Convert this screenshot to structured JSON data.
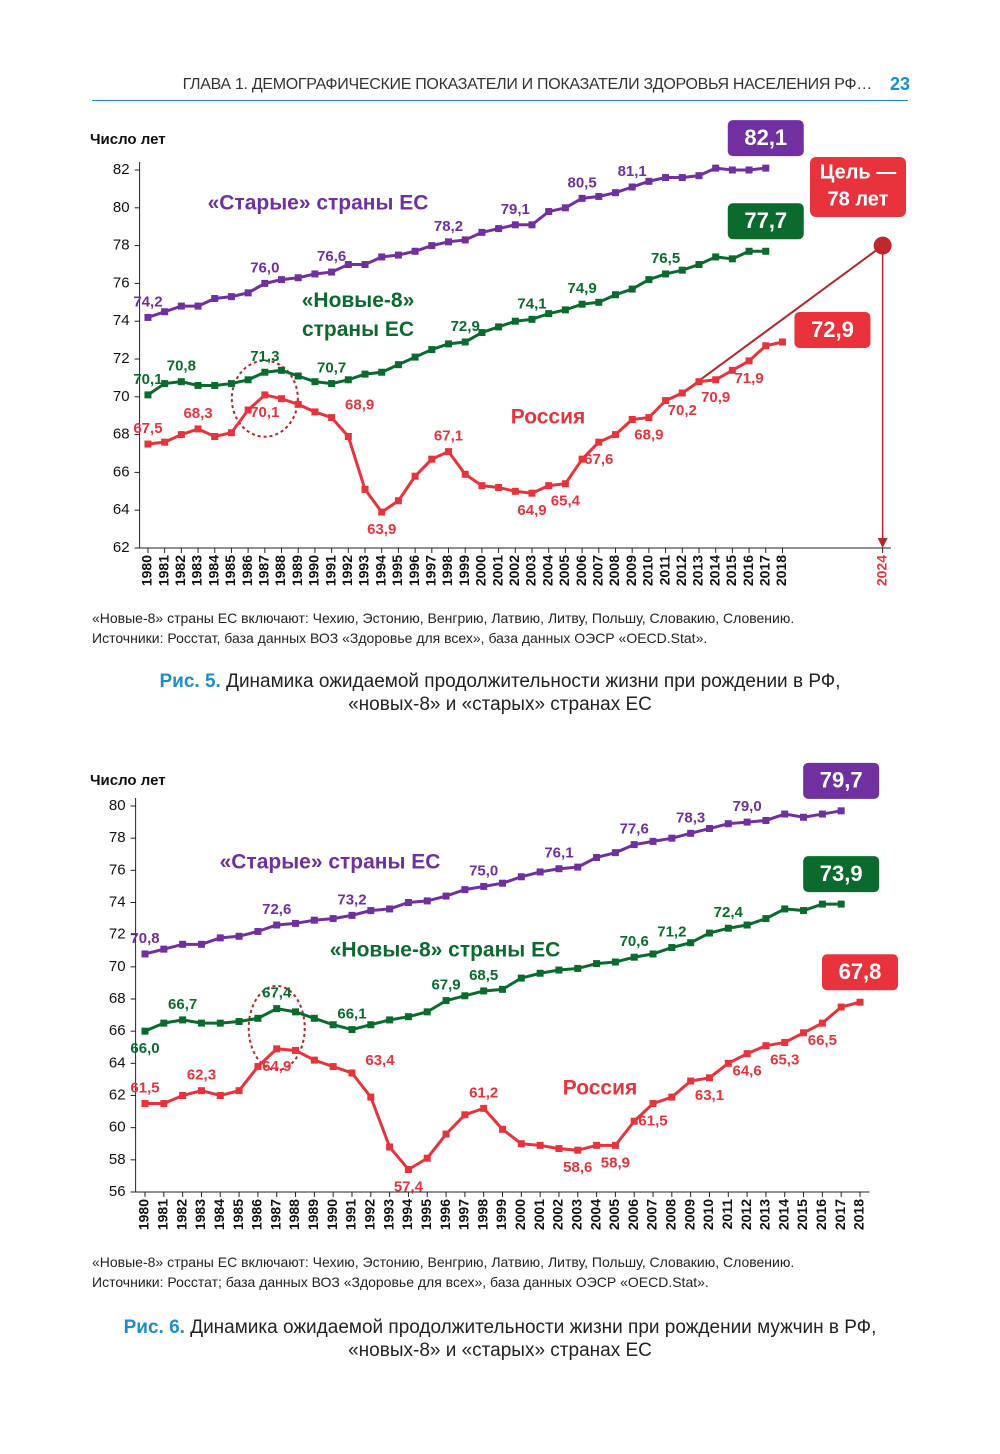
{
  "header": {
    "title": "ГЛАВА 1. ДЕМОГРАФИЧЕСКИЕ ПОКАЗАТЕЛИ И ПОКАЗАТЕЛИ ЗДОРОВЬЯ НАСЕЛЕНИЯ РФ…",
    "page": 23
  },
  "chart_data": [
    {
      "type": "line",
      "y_label": "Число лет",
      "x": [
        1980,
        1981,
        1982,
        1983,
        1984,
        1985,
        1986,
        1987,
        1988,
        1989,
        1990,
        1991,
        1992,
        1993,
        1994,
        1995,
        1996,
        1997,
        1998,
        1999,
        2000,
        2001,
        2002,
        2003,
        2004,
        2005,
        2006,
        2007,
        2008,
        2009,
        2010,
        2011,
        2012,
        2013,
        2014,
        2015,
        2016,
        2017,
        2018
      ],
      "xlim": [
        1979.5,
        2024.5
      ],
      "xticks": [
        1980,
        1981,
        1982,
        1983,
        1984,
        1985,
        1986,
        1987,
        1988,
        1989,
        1990,
        1991,
        1992,
        1993,
        1994,
        1995,
        1996,
        1997,
        1998,
        1999,
        2000,
        2001,
        2002,
        2003,
        2004,
        2005,
        2006,
        2007,
        2008,
        2009,
        2010,
        2011,
        2012,
        2013,
        2014,
        2015,
        2016,
        2017,
        2018,
        2024
      ],
      "ylim": [
        62,
        82
      ],
      "yticks": [
        62,
        64,
        66,
        68,
        70,
        72,
        74,
        76,
        78,
        80,
        82
      ],
      "series": [
        {
          "name": "«Старые» страны ЕС",
          "color": "#7030a0",
          "values": [
            74.2,
            74.5,
            74.8,
            74.8,
            75.2,
            75.3,
            75.5,
            76.0,
            76.2,
            76.3,
            76.5,
            76.6,
            77.0,
            77.0,
            77.4,
            77.5,
            77.7,
            78.0,
            78.2,
            78.3,
            78.7,
            78.9,
            79.1,
            79.1,
            79.8,
            80.0,
            80.5,
            80.6,
            80.8,
            81.1,
            81.4,
            81.6,
            81.6,
            81.7,
            82.1,
            82.0,
            82.0,
            82.1,
            null
          ],
          "value_labels": [
            "74,2",
            null,
            null,
            null,
            null,
            null,
            null,
            "76,0",
            null,
            null,
            null,
            "76,6",
            null,
            null,
            null,
            null,
            null,
            null,
            "78,2",
            null,
            null,
            null,
            "79,1",
            null,
            null,
            null,
            "80,5",
            null,
            null,
            "81,1",
            null,
            null,
            null,
            null,
            null,
            null,
            null,
            "82,1",
            null
          ]
        },
        {
          "name": "«Новые-8» страны ЕС",
          "color": "#0b6b2e",
          "values": [
            70.1,
            70.7,
            70.8,
            70.6,
            70.6,
            70.7,
            70.9,
            71.3,
            71.4,
            71.1,
            70.8,
            70.7,
            70.9,
            71.2,
            71.3,
            71.7,
            72.1,
            72.5,
            72.8,
            72.9,
            73.4,
            73.7,
            74.0,
            74.1,
            74.4,
            74.6,
            74.9,
            75.0,
            75.4,
            75.7,
            76.2,
            76.5,
            76.7,
            77.0,
            77.4,
            77.3,
            77.7,
            77.7,
            null
          ],
          "value_labels": [
            "70,1",
            null,
            "70,8",
            null,
            null,
            null,
            null,
            "71,3",
            null,
            null,
            null,
            "70,7",
            null,
            null,
            null,
            null,
            null,
            null,
            null,
            "72,9",
            null,
            null,
            null,
            "74,1",
            null,
            null,
            "74,9",
            null,
            null,
            null,
            null,
            "76,5",
            null,
            null,
            null,
            null,
            null,
            "77,7",
            null
          ]
        },
        {
          "name": "Россия",
          "color": "#e8333c",
          "values": [
            67.5,
            67.6,
            68.0,
            68.3,
            67.9,
            68.1,
            69.3,
            70.1,
            69.9,
            69.6,
            69.2,
            68.9,
            67.9,
            65.1,
            63.9,
            64.5,
            65.8,
            66.7,
            67.1,
            65.9,
            65.3,
            65.2,
            65.0,
            64.9,
            65.3,
            65.4,
            66.7,
            67.6,
            68.0,
            68.8,
            68.9,
            69.8,
            70.2,
            70.8,
            70.9,
            71.4,
            71.9,
            72.7,
            72.9
          ],
          "value_labels": [
            "67,5",
            null,
            null,
            "68,3",
            null,
            null,
            null,
            "70,1",
            null,
            null,
            null,
            "68,9",
            null,
            null,
            "63,9",
            null,
            null,
            null,
            "67,1",
            null,
            null,
            null,
            null,
            "64,9",
            null,
            "65,4",
            null,
            "67,6",
            null,
            null,
            "68,9",
            null,
            "70,2",
            null,
            "70,9",
            null,
            "71,9",
            null,
            "72,9"
          ]
        }
      ],
      "target": {
        "label_lines": [
          "Цель —",
          "78 лет"
        ],
        "x": [
          2012,
          2024
        ],
        "values": [
          70.2,
          78
        ]
      },
      "note": "«Новые-8» страны ЕС включают: Чехию, Эстонию, Венгрию, Латвию, Литву, Польшу, Словакию, Словению.",
      "source": "Источники: Росстат, база данных ВОЗ «Здоровье для всех», база данных ОЭСР «OECD.Stat».",
      "caption_label": "Рис. 5.",
      "caption_lines": [
        "Динамика ожидаемой продолжительности жизни при рождении в РФ,",
        "«новых-8» и «старых» странах ЕС"
      ]
    },
    {
      "type": "line",
      "y_label": "Число лет",
      "x": [
        1980,
        1981,
        1982,
        1983,
        1984,
        1985,
        1986,
        1987,
        1988,
        1989,
        1990,
        1991,
        1992,
        1993,
        1994,
        1995,
        1996,
        1997,
        1998,
        1999,
        2000,
        2001,
        2002,
        2003,
        2004,
        2005,
        2006,
        2007,
        2008,
        2009,
        2010,
        2011,
        2012,
        2013,
        2014,
        2015,
        2016,
        2017,
        2018
      ],
      "xlim": [
        1979.5,
        2018.5
      ],
      "xticks": [
        1980,
        1981,
        1982,
        1983,
        1984,
        1985,
        1986,
        1987,
        1988,
        1989,
        1990,
        1991,
        1992,
        1993,
        1994,
        1995,
        1996,
        1997,
        1998,
        1999,
        2000,
        2001,
        2002,
        2003,
        2004,
        2005,
        2006,
        2007,
        2008,
        2009,
        2010,
        2011,
        2012,
        2013,
        2014,
        2015,
        2016,
        2017,
        2018
      ],
      "ylim": [
        56,
        80
      ],
      "yticks": [
        56,
        58,
        60,
        62,
        64,
        66,
        68,
        70,
        72,
        74,
        76,
        78,
        80
      ],
      "series": [
        {
          "name": "«Старые» страны ЕС",
          "color": "#7030a0",
          "values": [
            70.8,
            71.1,
            71.4,
            71.4,
            71.8,
            71.9,
            72.2,
            72.6,
            72.7,
            72.9,
            73.0,
            73.2,
            73.5,
            73.6,
            74.0,
            74.1,
            74.4,
            74.8,
            75.0,
            75.2,
            75.6,
            75.9,
            76.1,
            76.2,
            76.8,
            77.1,
            77.6,
            77.8,
            78.0,
            78.3,
            78.6,
            78.9,
            79.0,
            79.1,
            79.5,
            79.3,
            79.5,
            79.7,
            null
          ],
          "value_labels": [
            "70,8",
            null,
            null,
            null,
            null,
            null,
            null,
            "72,6",
            null,
            null,
            null,
            "73,2",
            null,
            null,
            null,
            null,
            null,
            null,
            "75,0",
            null,
            null,
            null,
            "76,1",
            null,
            null,
            null,
            "77,6",
            null,
            null,
            "78,3",
            null,
            null,
            "79,0",
            null,
            null,
            null,
            null,
            "79,7",
            null
          ]
        },
        {
          "name": "«Новые-8» страны ЕС",
          "color": "#0b6b2e",
          "values": [
            66.0,
            66.5,
            66.7,
            66.5,
            66.5,
            66.6,
            66.8,
            67.4,
            67.2,
            66.8,
            66.4,
            66.1,
            66.4,
            66.7,
            66.9,
            67.2,
            67.9,
            68.2,
            68.5,
            68.6,
            69.3,
            69.6,
            69.8,
            69.9,
            70.2,
            70.3,
            70.6,
            70.8,
            71.2,
            71.5,
            72.1,
            72.4,
            72.6,
            73.0,
            73.6,
            73.5,
            73.9,
            73.9,
            null
          ],
          "value_labels": [
            "66,0",
            null,
            "66,7",
            null,
            null,
            null,
            null,
            "67,4",
            null,
            null,
            null,
            "66,1",
            null,
            null,
            null,
            null,
            "67,9",
            null,
            "68,5",
            null,
            null,
            null,
            null,
            null,
            null,
            null,
            "70,6",
            null,
            "71,2",
            null,
            null,
            "72,4",
            null,
            null,
            null,
            null,
            null,
            "73,9",
            null
          ]
        },
        {
          "name": "Россия",
          "color": "#e8333c",
          "values": [
            61.5,
            61.5,
            62.0,
            62.3,
            62.0,
            62.3,
            63.8,
            64.9,
            64.8,
            64.2,
            63.8,
            63.4,
            61.9,
            58.8,
            57.4,
            58.1,
            59.6,
            60.8,
            61.2,
            59.9,
            59.0,
            58.9,
            58.7,
            58.6,
            58.9,
            58.9,
            60.4,
            61.5,
            61.9,
            62.9,
            63.1,
            64.0,
            64.6,
            65.1,
            65.3,
            65.9,
            66.5,
            67.5,
            67.8
          ],
          "value_labels": [
            "61,5",
            null,
            null,
            "62,3",
            null,
            null,
            null,
            "64,9",
            null,
            null,
            null,
            "63,4",
            null,
            null,
            "57,4",
            null,
            null,
            null,
            "61,2",
            null,
            null,
            null,
            null,
            "58,6",
            null,
            "58,9",
            null,
            "61,5",
            null,
            null,
            "63,1",
            null,
            "64,6",
            null,
            "65,3",
            null,
            "66,5",
            null,
            "67,8"
          ]
        }
      ],
      "note": "«Новые-8» страны ЕС включают: Чехию, Эстонию, Венгрию, Латвию, Литву, Польшу, Словакию, Словению.",
      "source": "Источники: Росстат; база данных ВОЗ «Здоровье для всех», база данных ОЭСР «OECD.Stat».",
      "caption_label": "Рис. 6.",
      "caption_lines": [
        "Динамика ожидаемой продолжительности жизни при рождении мужчин в РФ,",
        "«новых-8» и «старых» странах ЕС"
      ]
    }
  ]
}
